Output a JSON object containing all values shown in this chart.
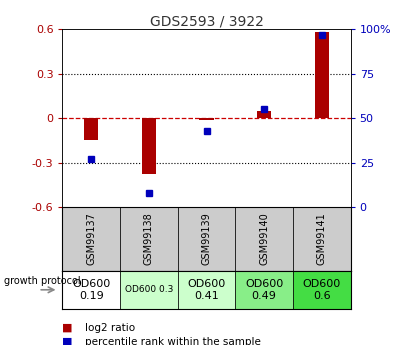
{
  "title": "GDS2593 / 3922",
  "samples": [
    "GSM99137",
    "GSM99138",
    "GSM99139",
    "GSM99140",
    "GSM99141"
  ],
  "log2_ratio": [
    -0.15,
    -0.38,
    -0.01,
    0.05,
    0.58
  ],
  "percentile_rank": [
    27,
    8,
    43,
    55,
    97
  ],
  "ylim_left": [
    -0.6,
    0.6
  ],
  "ylim_right": [
    0,
    100
  ],
  "yticks_left": [
    -0.6,
    -0.3,
    0.0,
    0.3,
    0.6
  ],
  "yticks_right": [
    0,
    25,
    50,
    75,
    100
  ],
  "bar_color": "#aa0000",
  "dot_color": "#0000bb",
  "dashed_line_color": "#cc0000",
  "dotted_line_color": "#000000",
  "growth_protocol_lines": [
    "OD600\n0.19",
    "OD600 0.3",
    "OD600\n0.41",
    "OD600\n0.49",
    "OD600\n0.6"
  ],
  "cell_colors": [
    "#ffffff",
    "#ccffcc",
    "#ccffcc",
    "#88ee88",
    "#44dd44"
  ],
  "cell_font_sizes": [
    8,
    6.5,
    8,
    8,
    8
  ],
  "header_color": "#cccccc",
  "legend_red": "log2 ratio",
  "legend_blue": "percentile rank within the sample",
  "bar_width": 0.25
}
